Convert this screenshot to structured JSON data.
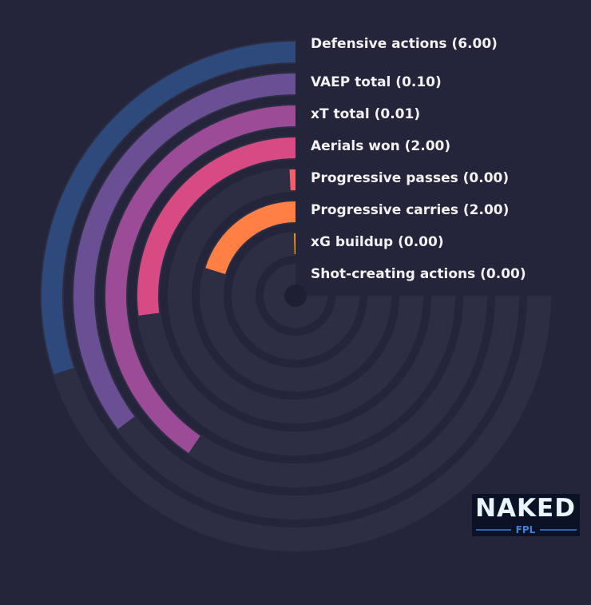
{
  "chart_data": {
    "type": "radial-bar",
    "categories": [
      "Defensive actions (6.00)",
      "VAEP total (0.10)",
      "xT total (0.01)",
      "Aerials won (2.00)",
      "Progressive passes (0.00)",
      "Progressive carries (2.00)",
      "xG buildup (0.00)",
      "Shot-creating actions (0.00)"
    ],
    "values": [
      40,
      47,
      54,
      36,
      1,
      27,
      0.5,
      0
    ],
    "colors": [
      "#2e4a7c",
      "#6a4f94",
      "#9c4c96",
      "#d84b82",
      "#f0606a",
      "#ff7f45",
      "#f5a623",
      "#f8c23a"
    ],
    "ylim": [
      0,
      100
    ],
    "track_color": "#2d2e44"
  },
  "logo": {
    "title": "NAKED",
    "subtitle": "FPL"
  }
}
